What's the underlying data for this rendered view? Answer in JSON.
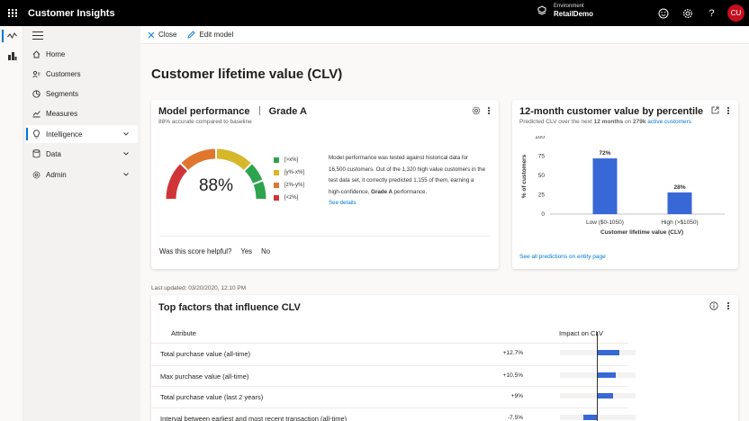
{
  "app": {
    "title": "Customer Insights"
  },
  "environment": {
    "label": "Environment",
    "name": "RetailDemo"
  },
  "user": {
    "initials": "CU"
  },
  "colors": {
    "accent": "#0078d4",
    "avatar": "#c50f1f",
    "bar": "#3867d6"
  },
  "rail": [
    {
      "icon": "insights-icon",
      "active": true
    },
    {
      "icon": "audience-icon",
      "active": false
    }
  ],
  "nav": {
    "items": [
      {
        "label": "Home",
        "icon": "home-icon",
        "expandable": false,
        "selected": false
      },
      {
        "label": "Customers",
        "icon": "customers-icon",
        "expandable": false,
        "selected": false
      },
      {
        "label": "Segments",
        "icon": "segments-icon",
        "expandable": false,
        "selected": false
      },
      {
        "label": "Measures",
        "icon": "measures-icon",
        "expandable": false,
        "selected": false
      },
      {
        "label": "Intelligence",
        "icon": "lightbulb-icon",
        "expandable": true,
        "selected": true
      },
      {
        "label": "Data",
        "icon": "database-icon",
        "expandable": true,
        "selected": false
      },
      {
        "label": "Admin",
        "icon": "gear-icon",
        "expandable": true,
        "selected": false
      }
    ]
  },
  "command_bar": {
    "close": "Close",
    "edit": "Edit model"
  },
  "page": {
    "title": "Customer lifetime value (CLV)"
  },
  "model_performance": {
    "title": "Model performance",
    "grade": "Grade A",
    "subtitle": "88% accurate compared to baseline",
    "gauge_value": "88%",
    "gauge_fraction": 0.88,
    "legend": [
      {
        "label": "[>x%]",
        "color": "#2da44e"
      },
      {
        "label": "[y%-x%]",
        "color": "#d6b72a"
      },
      {
        "label": "[z%-y%]",
        "color": "#e0762e"
      },
      {
        "label": "[<z%]",
        "color": "#d13438"
      }
    ],
    "description_parts": {
      "before": "Model performance was tested against historical data for 16,500 customers. Out of the 1,320 high value customers in the test data set, it correctly predicted 1,155 of them, earning a high-confidence, ",
      "bold": "Grade A",
      "after": " performance."
    },
    "see_details": "See details",
    "helpful_question": "Was this score helpful?",
    "yes": "Yes",
    "no": "No"
  },
  "percentile_card": {
    "title": "12-month customer value by percentile",
    "subtitle_parts": {
      "prefix": "Predicted CLV over the next ",
      "bold_period": "12 months",
      "middle": " on ",
      "bold_count": "279k",
      "space": " ",
      "link": "active customers"
    },
    "footer_link": "See all predictions on entity page"
  },
  "chart_data": {
    "type": "bar",
    "categories": [
      "Low ($0-1050)",
      "High (>$1050)"
    ],
    "values": [
      72,
      28
    ],
    "data_labels": [
      "72%",
      "28%"
    ],
    "xlabel": "Customer lifetime value (CLV)",
    "ylabel": "% of customers",
    "ylim": [
      0,
      100
    ],
    "yticks": [
      "0",
      "25",
      "50",
      "75",
      "100"
    ],
    "grid": false,
    "color": "#3867d6"
  },
  "last_updated": "Last updated: 03/20/2020, 12:10 PM",
  "factors": {
    "title": "Top factors that influence CLV",
    "col_attribute": "Attribute",
    "col_impact": "Impact on CLV",
    "rows": [
      {
        "attribute": "Total purchase value (all-time)",
        "impact_label": "+12.7%",
        "impact": 12.7
      },
      {
        "attribute": "Max purchase value (all-time)",
        "impact_label": "+10.5%",
        "impact": 10.5
      },
      {
        "attribute": "Total purchase value (last 2 years)",
        "impact_label": "+9%",
        "impact": 9
      },
      {
        "attribute": "Interval between earliest and most recent transaction (all-time)",
        "impact_label": "-7.5%",
        "impact": -7.5
      }
    ]
  }
}
